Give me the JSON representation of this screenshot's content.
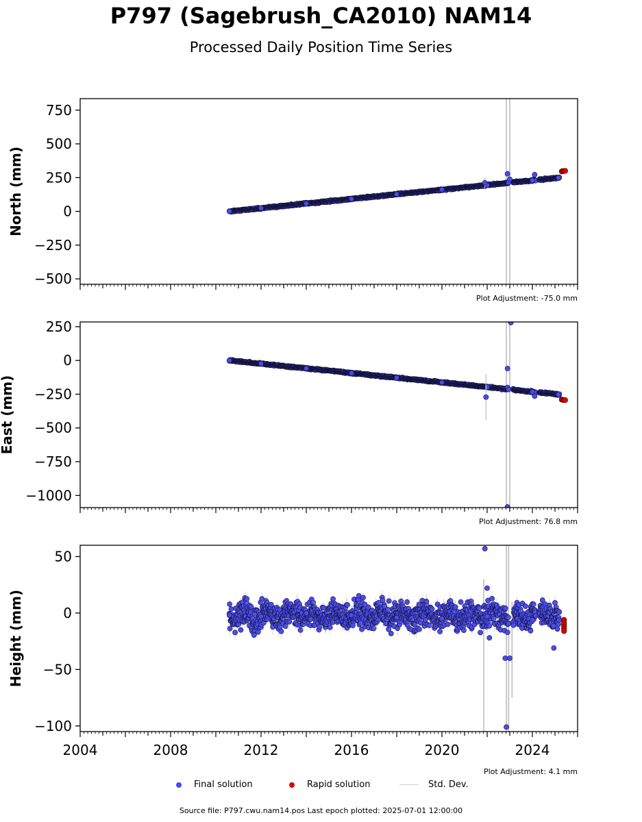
{
  "title": "P797 (Sagebrush_CA2010) NAM14",
  "subtitle": "Processed Daily Position Time Series",
  "source_text": "Source file: P797.cwu.nam14.pos  Last epoch plotted: 2025-07-01 12:00:00",
  "legend": [
    {
      "label": "Final solution",
      "color": "#4b4bef",
      "kind": "dot"
    },
    {
      "label": "Rapid solution",
      "color": "#e00000",
      "kind": "dot"
    },
    {
      "label": "Std. Dev.",
      "color": "#cfcfcf",
      "kind": "line"
    }
  ],
  "chart_data": [
    {
      "type": "scatter",
      "ylabel": "North (mm)",
      "adjustment": "Plot Adjustment: -75.0 mm",
      "xlim": [
        2004.0,
        2026.0
      ],
      "ylim": [
        -540,
        835
      ],
      "yticks": [
        -500,
        -250,
        0,
        250,
        500,
        750
      ],
      "ytick_labels": [
        "−500",
        "−250",
        "0",
        "250",
        "500",
        "750"
      ],
      "yminor": 50,
      "trend": {
        "start_year": 2010.6,
        "start_value": 0,
        "slope_per_year": 17.1,
        "noise": 4,
        "gaps": [
          [
            2022.95,
            2023.15
          ],
          [
            2024.15,
            2024.3
          ]
        ]
      },
      "final_solution": {
        "x": [
          2010.6,
          2012.0,
          2014.0,
          2016.0,
          2018.0,
          2020.0,
          2022.0,
          2024.0,
          2025.15
        ],
        "y": [
          0,
          24,
          58,
          92,
          127,
          161,
          195,
          229,
          249
        ]
      },
      "outliers": [
        [
          2021.9,
          212,
          40
        ],
        [
          2022.9,
          278,
          0
        ],
        [
          2023.0,
          238,
          0
        ],
        [
          2024.1,
          272,
          0
        ]
      ],
      "rapid_solution": {
        "x": [
          2025.3,
          2025.35,
          2025.4,
          2025.45
        ],
        "y": [
          296,
          298,
          299,
          300
        ]
      },
      "stddev_spikes": [
        [
          2022.85,
          -545,
          840
        ],
        [
          2023.0,
          -545,
          840
        ]
      ]
    },
    {
      "type": "scatter",
      "ylabel": "East (mm)",
      "adjustment": "Plot Adjustment: 76.8 mm",
      "xlim": [
        2004.0,
        2026.0
      ],
      "ylim": [
        -1090,
        285
      ],
      "yticks": [
        -1000,
        -750,
        -500,
        -250,
        0,
        250
      ],
      "ytick_labels": [
        "−1000",
        "−750",
        "−500",
        "−250",
        "0",
        "250"
      ],
      "yminor": 50,
      "trend": {
        "start_year": 2010.6,
        "start_value": 0,
        "slope_per_year": -17.3,
        "noise": 4,
        "gaps": [
          [
            2022.95,
            2023.15
          ],
          [
            2024.15,
            2024.3
          ]
        ]
      },
      "final_solution": {
        "x": [
          2010.6,
          2012.0,
          2014.0,
          2016.0,
          2018.0,
          2020.0,
          2022.0,
          2024.0,
          2025.15
        ],
        "y": [
          0,
          -24,
          -59,
          -93,
          -128,
          -163,
          -197,
          -232,
          -252
        ]
      },
      "outliers": [
        [
          2021.95,
          -272,
          170
        ],
        [
          2022.9,
          -60,
          0
        ],
        [
          2022.9,
          -200,
          0
        ],
        [
          2022.95,
          -215,
          0
        ],
        [
          2023.05,
          280,
          0
        ],
        [
          2022.9,
          -1085,
          0
        ],
        [
          2024.1,
          -265,
          0
        ]
      ],
      "rapid_solution": {
        "x": [
          2025.3,
          2025.35,
          2025.4,
          2025.45
        ],
        "y": [
          -290,
          -292,
          -293,
          -294
        ]
      },
      "stddev_spikes": [
        [
          2022.85,
          -1095,
          290
        ],
        [
          2023.0,
          -1095,
          290
        ]
      ]
    },
    {
      "type": "scatter",
      "ylabel": "Height (mm)",
      "adjustment": "Plot Adjustment: 4.1 mm",
      "xlim": [
        2004.0,
        2026.0
      ],
      "ylim": [
        -105,
        60
      ],
      "yticks": [
        -100,
        -50,
        0,
        50
      ],
      "ytick_labels": [
        "−100",
        "−50",
        "0",
        "50"
      ],
      "yminor": 10,
      "xticks": [
        2004,
        2008,
        2012,
        2016,
        2020,
        2024
      ],
      "xtick_labels": [
        "2004",
        "2008",
        "2012",
        "2016",
        "2020",
        "2024"
      ],
      "trend": {
        "start_year": 2010.6,
        "start_value": -2,
        "slope_per_year": 0,
        "noise": 8,
        "gaps": [
          [
            2022.95,
            2023.15
          ],
          [
            2024.15,
            2024.3
          ]
        ]
      },
      "final_solution": {
        "x": [
          2010.6,
          2012.0,
          2014.0,
          2016.0,
          2018.0,
          2020.0,
          2022.0,
          2024.0,
          2025.15
        ],
        "y": [
          -2,
          -3,
          0,
          -2,
          -4,
          -5,
          -3,
          -6,
          -10
        ]
      },
      "outliers": [
        [
          2021.9,
          57,
          0
        ],
        [
          2022.0,
          22,
          0
        ],
        [
          2022.1,
          -22,
          0
        ],
        [
          2022.8,
          -40,
          0
        ],
        [
          2023.0,
          -40,
          0
        ],
        [
          2022.85,
          -101,
          0
        ],
        [
          2024.95,
          -31,
          0
        ]
      ],
      "rapid_solution": {
        "x": [
          2025.4,
          2025.4,
          2025.4,
          2025.4,
          2025.4,
          2025.4
        ],
        "y": [
          -6,
          -8,
          -10,
          -12,
          -14,
          -16
        ]
      },
      "stddev_spikes": [
        [
          2021.85,
          -105,
          30
        ],
        [
          2022.85,
          -105,
          60
        ],
        [
          2022.95,
          -105,
          60
        ],
        [
          2023.1,
          -75,
          10
        ]
      ]
    }
  ]
}
